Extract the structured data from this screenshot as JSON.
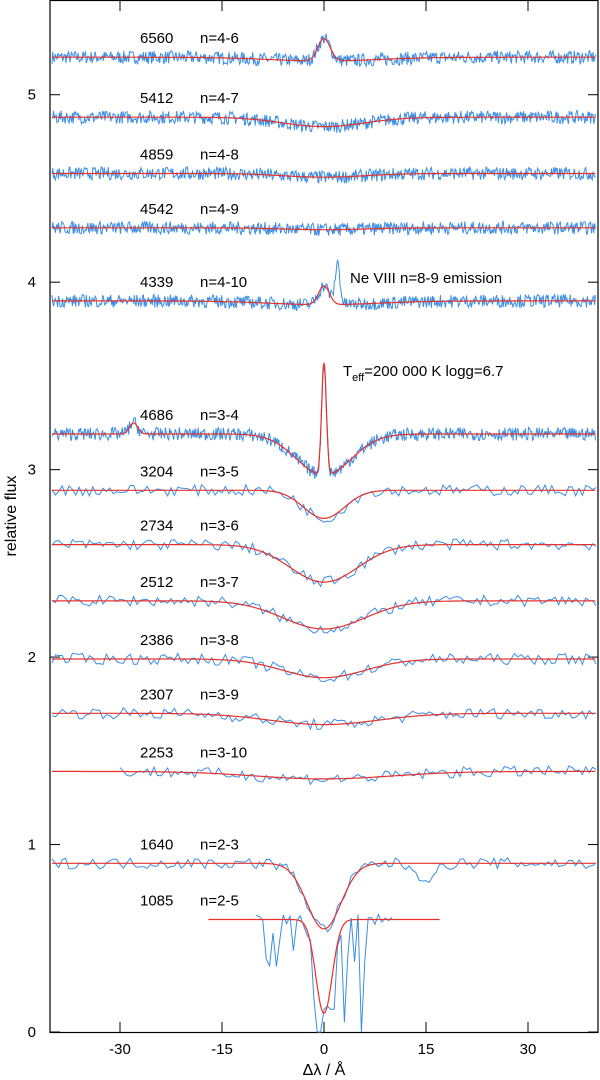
{
  "chart_data": {
    "type": "line",
    "xlabel": "Δλ / Å",
    "ylabel": "relative flux",
    "xlim": [
      -40,
      40
    ],
    "ylim": [
      0,
      5.5
    ],
    "xticks": [
      -30,
      -15,
      0,
      15,
      30
    ],
    "yticks": [
      0,
      1,
      2,
      3,
      4,
      5
    ],
    "series_legend": {
      "observed": "#3b8ee6",
      "model": "#e8302b"
    },
    "annotations": {
      "neviii": "Ne VIII n=8-9 emission",
      "teff_prefix": "T",
      "teff_sub": "eff",
      "teff_rest": "=200 000 K  logg=6.7"
    },
    "lines": [
      {
        "wavelength": "6560",
        "transition": "n=4-6",
        "offset": 5.2,
        "profile": "emission",
        "depth": 0.12,
        "width": 0.9
      },
      {
        "wavelength": "5412",
        "transition": "n=4-7",
        "offset": 4.88,
        "profile": "absorption",
        "depth": 0.05,
        "width": 6
      },
      {
        "wavelength": "4859",
        "transition": "n=4-8",
        "offset": 4.58,
        "profile": "absorption",
        "depth": 0.02,
        "width": 6
      },
      {
        "wavelength": "4542",
        "transition": "n=4-9",
        "offset": 4.29,
        "profile": "absorption",
        "depth": 0.01,
        "width": 6
      },
      {
        "wavelength": "4339",
        "transition": "n=4-10",
        "offset": 3.9,
        "profile": "emission",
        "depth": 0.1,
        "width": 0.8
      },
      {
        "wavelength": "4686",
        "transition": "n=3-4",
        "offset": 3.19,
        "profile": "central-emission",
        "depth": 0.22,
        "width": 4
      },
      {
        "wavelength": "3204",
        "transition": "n=3-5",
        "offset": 2.89,
        "profile": "absorption",
        "depth": 0.15,
        "width": 3
      },
      {
        "wavelength": "2734",
        "transition": "n=3-6",
        "offset": 2.6,
        "profile": "absorption",
        "depth": 0.2,
        "width": 5
      },
      {
        "wavelength": "2512",
        "transition": "n=3-7",
        "offset": 2.3,
        "profile": "absorption",
        "depth": 0.15,
        "width": 6
      },
      {
        "wavelength": "2386",
        "transition": "n=3-8",
        "offset": 1.99,
        "profile": "absorption",
        "depth": 0.1,
        "width": 6
      },
      {
        "wavelength": "2307",
        "transition": "n=3-9",
        "offset": 1.7,
        "profile": "absorption",
        "depth": 0.06,
        "width": 8
      },
      {
        "wavelength": "2253",
        "transition": "n=3-10",
        "offset": 1.39,
        "profile": "absorption",
        "depth": 0.04,
        "width": 10
      },
      {
        "wavelength": "1640",
        "transition": "n=2-3",
        "offset": 0.9,
        "profile": "absorption",
        "depth": 0.35,
        "width": 2.5
      },
      {
        "wavelength": "1085",
        "transition": "n=2-5",
        "offset": 0.6,
        "profile": "absorption",
        "depth": 0.5,
        "width": 1.2
      }
    ]
  }
}
